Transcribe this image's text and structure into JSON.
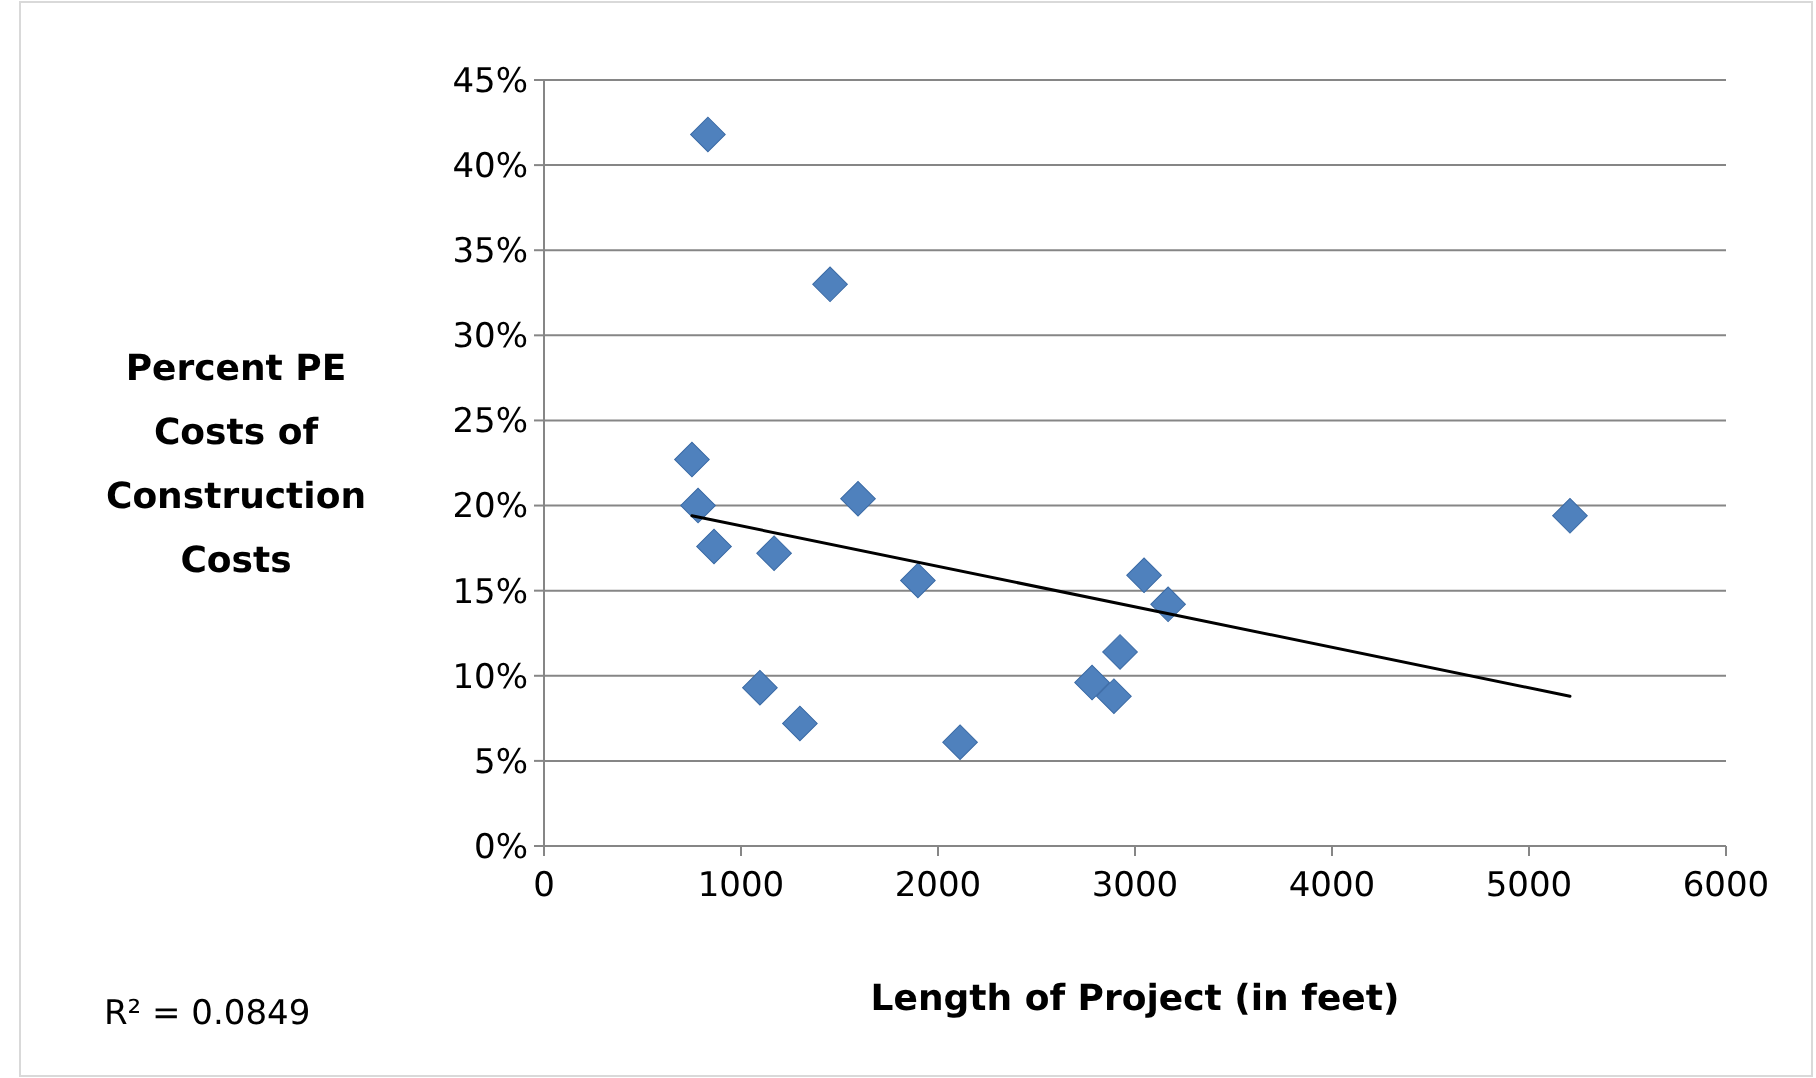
{
  "chart_data": {
    "type": "scatter",
    "xlabel": "Length of Project (in feet)",
    "ylabel": "Percent PE Costs of Construction Costs",
    "annotations": [
      "R² = 0.0849"
    ],
    "xlim": [
      0,
      6000
    ],
    "xticks": [
      0,
      1000,
      2000,
      3000,
      4000,
      5000,
      6000
    ],
    "ylim": [
      0,
      45
    ],
    "yticks": [
      {
        "value": 0,
        "label": "0%"
      },
      {
        "value": 5,
        "label": "5%"
      },
      {
        "value": 10,
        "label": "10%"
      },
      {
        "value": 15,
        "label": "15%"
      },
      {
        "value": 20,
        "label": "20%"
      },
      {
        "value": 25,
        "label": "25%"
      },
      {
        "value": 30,
        "label": "30%"
      },
      {
        "value": 35,
        "label": "35%"
      },
      {
        "value": 40,
        "label": "40%"
      },
      {
        "value": 45,
        "label": "45%"
      }
    ],
    "grid": "y",
    "marker": "diamond",
    "series": [
      {
        "color": "#4f81bd",
        "x": [
          832,
          1452,
          751,
          782,
          863,
          1168,
          1594,
          1898,
          1096,
          1299,
          2112,
          2782,
          2893,
          2924,
          3046,
          3168,
          5208
        ],
        "values": [
          41.8,
          33.0,
          22.7,
          20.0,
          17.6,
          17.2,
          20.4,
          15.6,
          9.3,
          7.2,
          6.1,
          9.6,
          8.8,
          11.4,
          15.9,
          14.2,
          19.4
        ]
      },
      {
        "type": "line",
        "color": "#000000",
        "marker": "none",
        "x": [
          751,
          5208
        ],
        "values": [
          19.4,
          8.8
        ]
      }
    ]
  }
}
